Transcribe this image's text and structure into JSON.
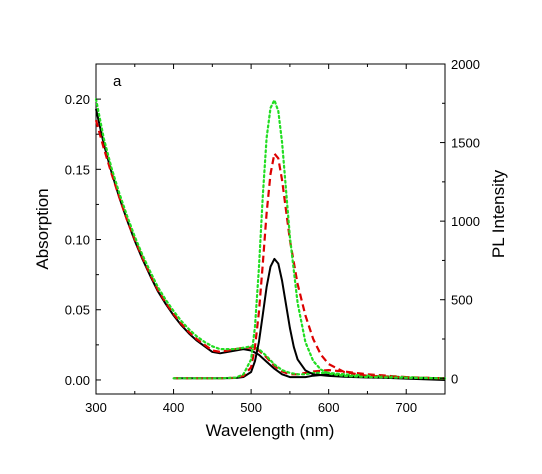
{
  "chart_data": {
    "type": "line",
    "panel_label": "a",
    "xlabel": "Wavelength (nm)",
    "ylabel_left": "Absorption",
    "ylabel_right": "PL Intensity",
    "xlim": [
      300,
      750
    ],
    "ylim_left": [
      -0.01,
      0.225
    ],
    "ylim_right": [
      -100,
      2000
    ],
    "x_ticks": [
      "300",
      "400",
      "500",
      "600",
      "700"
    ],
    "y_ticks_left": [
      "0.00",
      "0.05",
      "0.10",
      "0.15",
      "0.20"
    ],
    "y_ticks_right": [
      "0",
      "500",
      "1000",
      "1500",
      "2000"
    ],
    "grid": false,
    "series": [
      {
        "kind": "absorption",
        "axis": "left",
        "color": "#000000",
        "style": "solid",
        "x": [
          300,
          310,
          320,
          330,
          340,
          350,
          360,
          370,
          380,
          390,
          400,
          410,
          420,
          430,
          440,
          450,
          460,
          470,
          480,
          490,
          500,
          510,
          520,
          530,
          540,
          550,
          560,
          570,
          580,
          600,
          620,
          650,
          700,
          750
        ],
        "y": [
          0.193,
          0.168,
          0.148,
          0.13,
          0.114,
          0.099,
          0.086,
          0.074,
          0.063,
          0.054,
          0.046,
          0.039,
          0.033,
          0.028,
          0.024,
          0.02,
          0.019,
          0.02,
          0.021,
          0.022,
          0.021,
          0.018,
          0.013,
          0.008,
          0.004,
          0.002,
          0.002,
          0.002,
          0.003,
          0.004,
          0.003,
          0.002,
          0.001,
          0.0
        ]
      },
      {
        "kind": "absorption",
        "axis": "left",
        "color": "#dd0000",
        "style": "dashed",
        "x": [
          300,
          310,
          320,
          330,
          340,
          350,
          360,
          370,
          380,
          390,
          400,
          410,
          420,
          430,
          440,
          450,
          460,
          470,
          480,
          490,
          500,
          510,
          520,
          530,
          540,
          550,
          560,
          570,
          580,
          600,
          620,
          650,
          700,
          750
        ],
        "y": [
          0.185,
          0.165,
          0.147,
          0.13,
          0.114,
          0.1,
          0.087,
          0.075,
          0.064,
          0.055,
          0.047,
          0.04,
          0.034,
          0.029,
          0.025,
          0.021,
          0.02,
          0.021,
          0.022,
          0.023,
          0.023,
          0.021,
          0.016,
          0.01,
          0.006,
          0.004,
          0.004,
          0.005,
          0.006,
          0.007,
          0.006,
          0.004,
          0.002,
          0.001
        ]
      },
      {
        "kind": "absorption",
        "axis": "left",
        "color": "#22dd22",
        "style": "dotted",
        "x": [
          300,
          310,
          320,
          330,
          340,
          350,
          360,
          370,
          380,
          390,
          400,
          410,
          420,
          430,
          440,
          450,
          460,
          470,
          480,
          490,
          500,
          510,
          520,
          530,
          540,
          550,
          560,
          570,
          580,
          600,
          620,
          650,
          700,
          750
        ],
        "y": [
          0.2,
          0.172,
          0.151,
          0.133,
          0.117,
          0.102,
          0.089,
          0.077,
          0.066,
          0.057,
          0.049,
          0.042,
          0.036,
          0.031,
          0.027,
          0.024,
          0.022,
          0.022,
          0.022,
          0.023,
          0.024,
          0.022,
          0.017,
          0.011,
          0.007,
          0.005,
          0.004,
          0.004,
          0.005,
          0.005,
          0.004,
          0.003,
          0.002,
          0.001
        ]
      },
      {
        "kind": "pl",
        "axis": "right",
        "color": "#000000",
        "style": "solid",
        "x": [
          400,
          460,
          480,
          490,
          500,
          505,
          510,
          515,
          520,
          525,
          530,
          535,
          540,
          545,
          550,
          555,
          560,
          570,
          580,
          600,
          620,
          650,
          700,
          750
        ],
        "y": [
          0,
          0,
          2,
          8,
          40,
          110,
          230,
          400,
          580,
          710,
          760,
          730,
          620,
          470,
          320,
          200,
          120,
          50,
          25,
          15,
          10,
          5,
          2,
          0
        ]
      },
      {
        "kind": "pl",
        "axis": "right",
        "color": "#dd0000",
        "style": "dashed",
        "x": [
          400,
          460,
          480,
          490,
          500,
          505,
          510,
          515,
          520,
          525,
          530,
          535,
          540,
          545,
          550,
          560,
          570,
          580,
          590,
          600,
          620,
          650,
          700,
          750
        ],
        "y": [
          0,
          0,
          3,
          15,
          70,
          200,
          420,
          720,
          1050,
          1300,
          1430,
          1400,
          1260,
          1070,
          880,
          600,
          400,
          250,
          150,
          90,
          40,
          15,
          5,
          0
        ]
      },
      {
        "kind": "pl",
        "axis": "right",
        "color": "#22dd22",
        "style": "dotted",
        "x": [
          400,
          460,
          480,
          490,
          500,
          505,
          510,
          515,
          520,
          525,
          530,
          535,
          540,
          545,
          550,
          560,
          570,
          580,
          590,
          600,
          620,
          650,
          700,
          750
        ],
        "y": [
          0,
          0,
          4,
          25,
          120,
          330,
          700,
          1150,
          1530,
          1720,
          1770,
          1700,
          1500,
          1200,
          900,
          480,
          230,
          110,
          55,
          30,
          15,
          8,
          3,
          0
        ]
      }
    ]
  }
}
